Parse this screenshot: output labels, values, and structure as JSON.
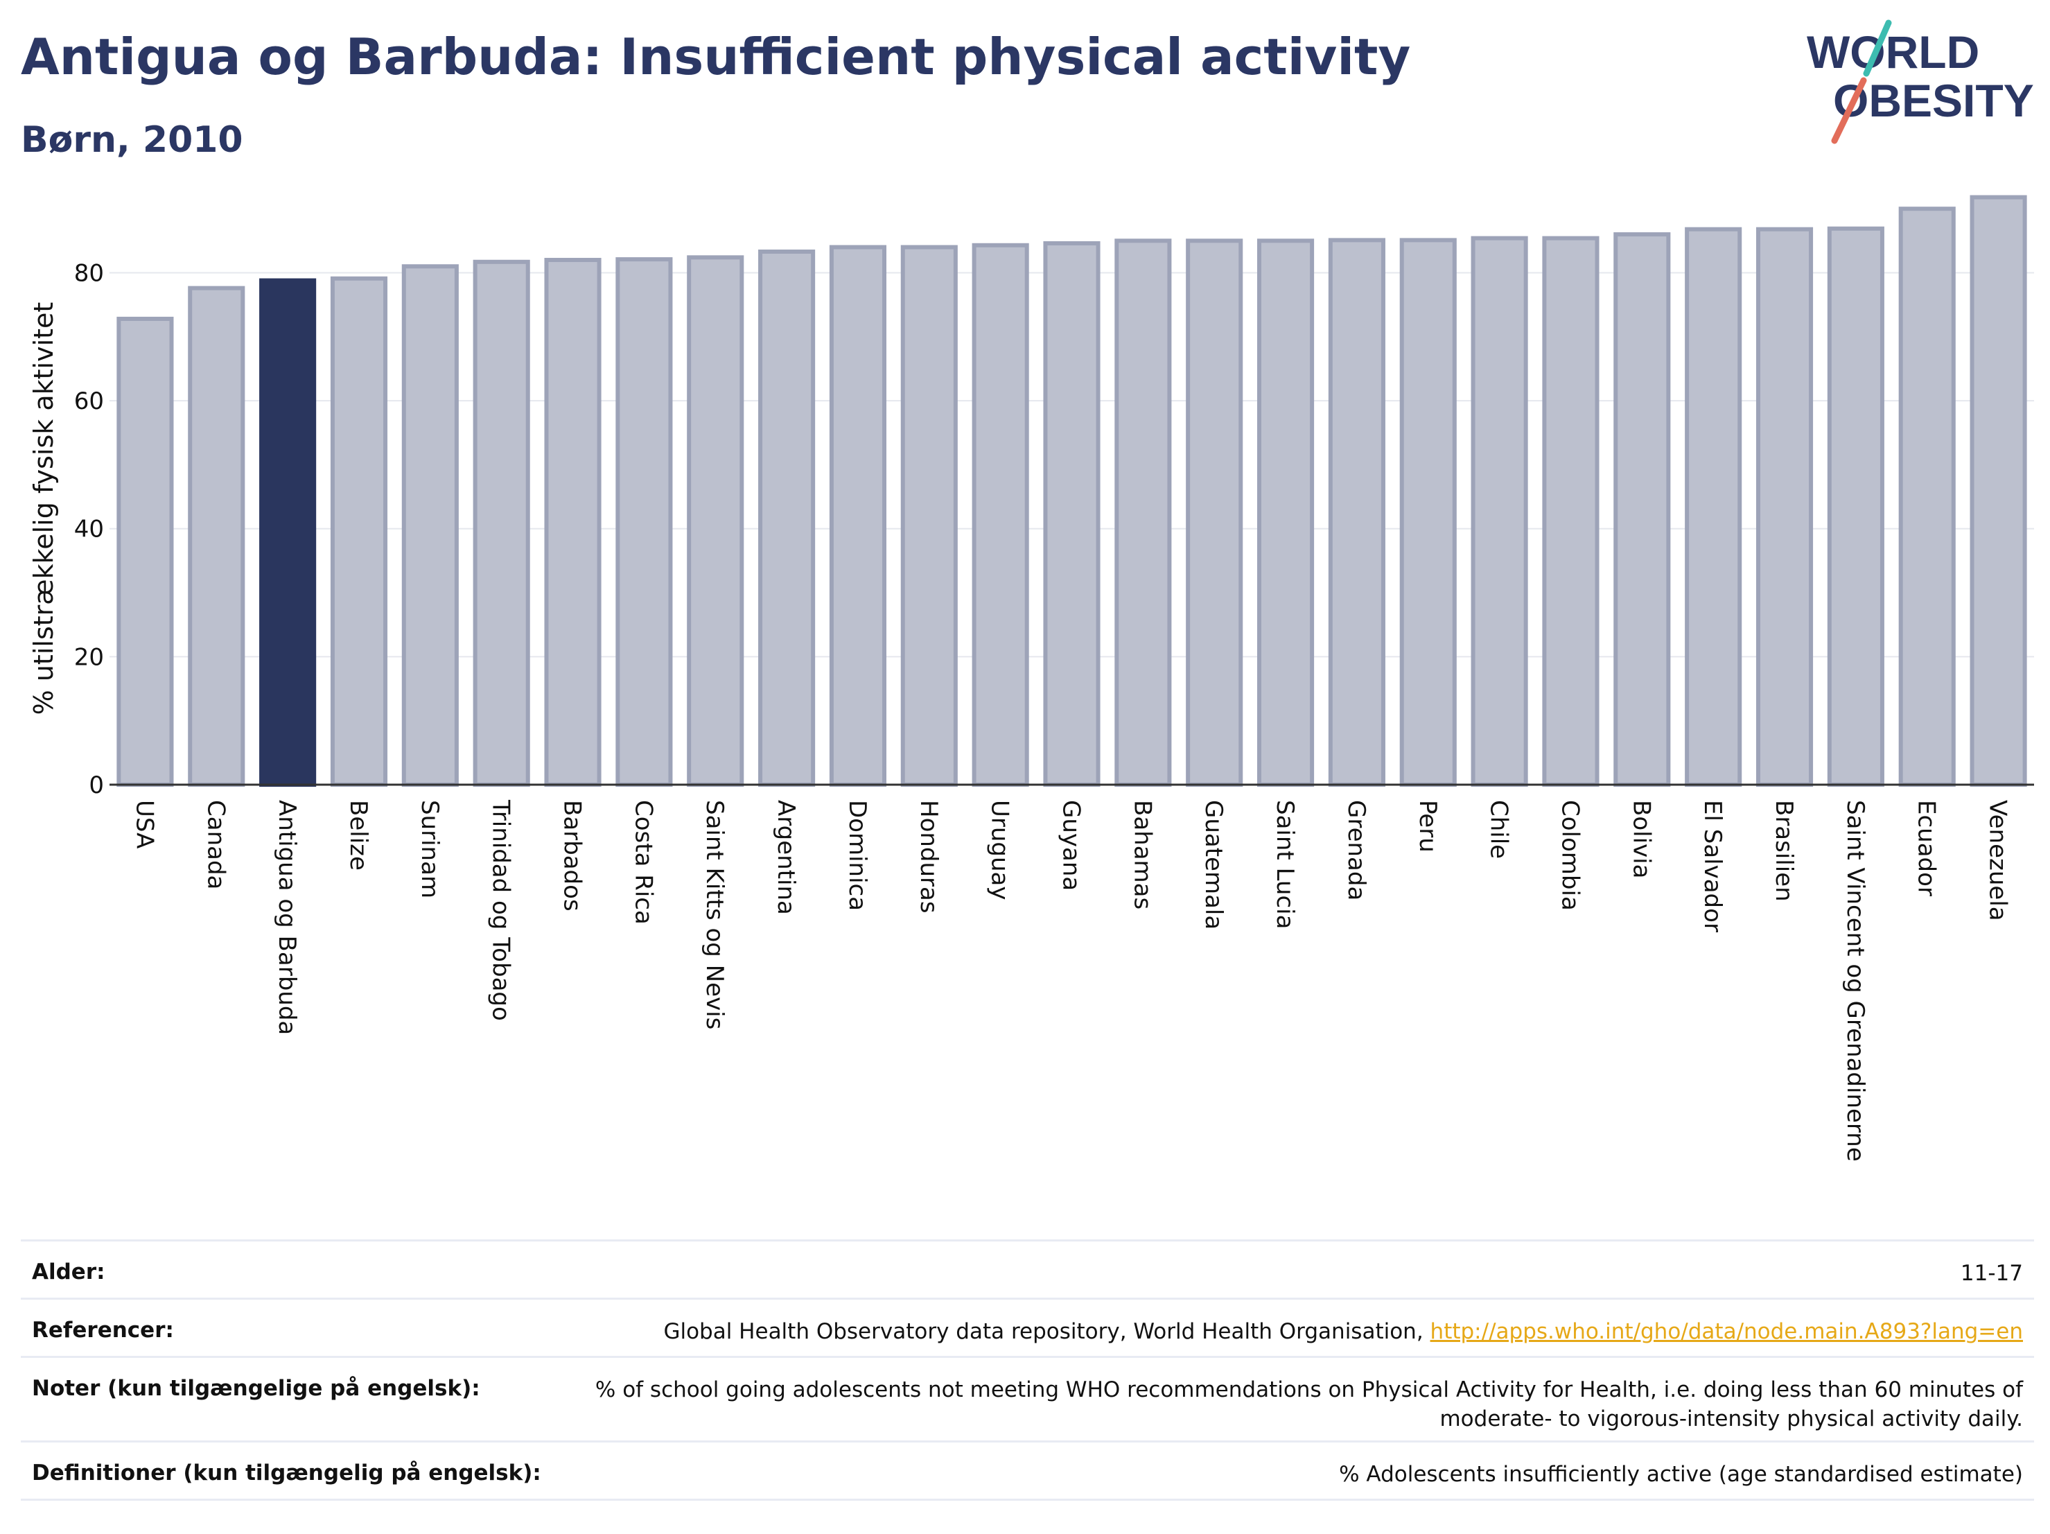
{
  "header": {
    "title": "Antigua og Barbuda: Insufficient physical activity",
    "subtitle": "Børn, 2010",
    "logo_top": "WORLD",
    "logo_bottom": "OBESITY"
  },
  "colors": {
    "highlight": "#2a365e",
    "bar_fill": "#bcc0ce",
    "bar_stroke": "#9da3b8",
    "title": "#2b3764",
    "link": "#e6a817",
    "logo_teal": "#3dbcb0",
    "logo_red": "#e26d5a"
  },
  "chart_data": {
    "type": "bar",
    "title": "Antigua og Barbuda: Insufficient physical activity",
    "subtitle": "Børn, 2010",
    "xlabel": "",
    "ylabel": "% utilstrækkelig fysisk aktivitet",
    "ylim": [
      0,
      95
    ],
    "yticks": [
      0,
      20,
      40,
      60,
      80
    ],
    "grid": true,
    "highlight": "Antigua og Barbuda",
    "categories": [
      "USA",
      "Canada",
      "Antigua og Barbuda",
      "Belize",
      "Surinam",
      "Trinidad og Tobago",
      "Barbados",
      "Costa Rica",
      "Saint Kitts og Nevis",
      "Argentina",
      "Dominica",
      "Honduras",
      "Uruguay",
      "Guyana",
      "Bahamas",
      "Guatemala",
      "Saint Lucia",
      "Grenada",
      "Peru",
      "Chile",
      "Colombia",
      "Bolivia",
      "El Salvador",
      "Brasilien",
      "Saint Vincent og Grenadinerne",
      "Ecuador",
      "Venezuela"
    ],
    "values": [
      72.8,
      77.6,
      78.8,
      79.1,
      81.0,
      81.7,
      82.0,
      82.1,
      82.4,
      83.3,
      84.0,
      84.0,
      84.3,
      84.6,
      85.0,
      85.0,
      85.0,
      85.1,
      85.1,
      85.4,
      85.4,
      86.0,
      86.8,
      86.8,
      86.9,
      90.0,
      91.8
    ]
  },
  "meta": [
    {
      "key": "Alder:",
      "value": "11-17"
    },
    {
      "key": "Referencer:",
      "value": "Global Health Observatory data repository, World Health Organisation, ",
      "link": "http://apps.who.int/gho/data/node.main.A893?lang=en"
    },
    {
      "key": "Noter (kun tilgængelige på engelsk):",
      "value": "% of school going adolescents not meeting WHO recommendations on Physical Activity for Health, i.e. doing less than 60 minutes of moderate- to vigorous-intensity physical activity daily."
    },
    {
      "key": "Definitioner (kun tilgængelig på engelsk):",
      "value": "% Adolescents insufficiently active (age standardised estimate)"
    }
  ]
}
